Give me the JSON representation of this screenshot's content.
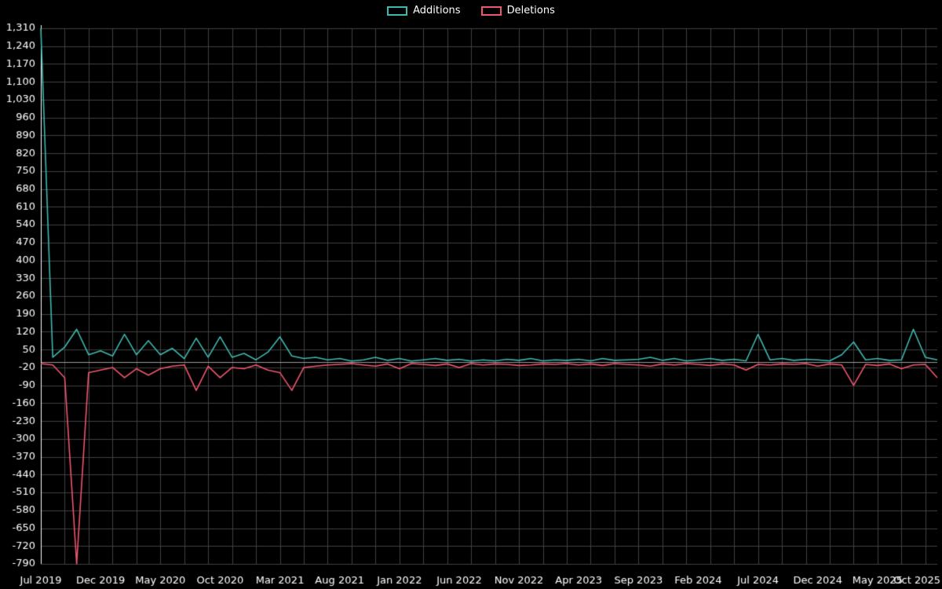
{
  "legend": {
    "items": [
      {
        "label": "Additions",
        "color": "#3fb8af"
      },
      {
        "label": "Deletions",
        "color": "#f0566e"
      }
    ]
  },
  "chart_data": {
    "type": "line",
    "title": "",
    "xlabel": "",
    "ylabel": "",
    "legend_position": "top-center",
    "grid": true,
    "background": "#000000",
    "grid_color": "#404040",
    "axis_color": "#ffffff",
    "zero_line_color": "#9a9a9a",
    "text_color": "#ffffff",
    "ylim": [
      -790,
      1310
    ],
    "y_ticks": [
      1310,
      1240,
      1170,
      1100,
      1030,
      960,
      890,
      820,
      750,
      680,
      610,
      540,
      470,
      400,
      330,
      260,
      190,
      120,
      50,
      -20,
      -90,
      -160,
      -230,
      -300,
      -370,
      -440,
      -510,
      -580,
      -650,
      -720,
      -790
    ],
    "x_tick_labels": [
      "Jul 2019",
      "Dec 2019",
      "May 2020",
      "Oct 2020",
      "Mar 2021",
      "Aug 2021",
      "Jan 2022",
      "Jun 2022",
      "Nov 2022",
      "Apr 2023",
      "Sep 2023",
      "Feb 2024",
      "Jul 2024",
      "Dec 2024",
      "May 2025",
      "Oct 2025"
    ],
    "x_tick_indices": [
      0,
      5,
      10,
      15,
      20,
      25,
      30,
      35,
      40,
      45,
      50,
      55,
      60,
      65,
      70,
      75
    ],
    "n_points": 76,
    "series": [
      {
        "name": "Additions",
        "color": "#3fb8af",
        "values": [
          1310,
          20,
          60,
          130,
          30,
          45,
          25,
          110,
          30,
          85,
          30,
          55,
          15,
          95,
          20,
          100,
          20,
          35,
          10,
          40,
          100,
          25,
          15,
          20,
          10,
          15,
          5,
          10,
          20,
          8,
          15,
          5,
          10,
          15,
          8,
          12,
          5,
          10,
          6,
          12,
          8,
          15,
          6,
          10,
          8,
          12,
          6,
          15,
          8,
          10,
          12,
          20,
          8,
          15,
          6,
          10,
          15,
          8,
          12,
          6,
          110,
          10,
          15,
          8,
          12,
          10,
          6,
          30,
          80,
          10,
          15,
          8,
          10,
          130,
          20,
          10
        ]
      },
      {
        "name": "Deletions",
        "color": "#f0566e",
        "values": [
          -5,
          -10,
          -60,
          -790,
          -40,
          -30,
          -20,
          -60,
          -25,
          -50,
          -25,
          -15,
          -10,
          -110,
          -15,
          -60,
          -20,
          -25,
          -10,
          -30,
          -40,
          -110,
          -20,
          -15,
          -10,
          -8,
          -5,
          -10,
          -15,
          -6,
          -25,
          -5,
          -8,
          -12,
          -6,
          -20,
          -5,
          -10,
          -6,
          -8,
          -12,
          -10,
          -6,
          -8,
          -5,
          -10,
          -6,
          -12,
          -5,
          -8,
          -10,
          -15,
          -6,
          -10,
          -5,
          -8,
          -12,
          -6,
          -10,
          -30,
          -8,
          -10,
          -6,
          -8,
          -5,
          -15,
          -6,
          -10,
          -90,
          -8,
          -12,
          -6,
          -25,
          -10,
          -8,
          -60
        ]
      }
    ]
  }
}
